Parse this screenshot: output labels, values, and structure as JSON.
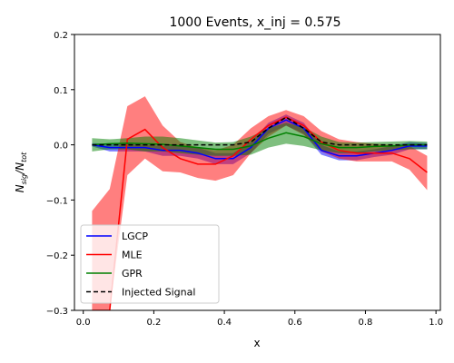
{
  "chart_data": {
    "type": "line",
    "title": "1000 Events, x_inj = 0.575",
    "xlabel": "x",
    "ylabel_main": "N",
    "ylabel_sub1": "sig",
    "ylabel_sep": "/N",
    "ylabel_sub2": "tot",
    "xlim": [
      -0.025,
      1.0125
    ],
    "ylim": [
      -0.3,
      0.2
    ],
    "xticks": [
      0.0,
      0.2,
      0.4,
      0.6,
      0.8,
      1.0
    ],
    "xtick_labels": [
      "0.0",
      "0.2",
      "0.4",
      "0.6",
      "0.8",
      "1.0"
    ],
    "yticks": [
      -0.3,
      -0.2,
      -0.1,
      0.0,
      0.1,
      0.2
    ],
    "ytick_labels": [
      "−0.3",
      "−0.2",
      "−0.1",
      "0.0",
      "0.1",
      "0.2"
    ],
    "grid": false,
    "legend_position": "lower-left",
    "x": [
      0.025,
      0.075,
      0.125,
      0.175,
      0.225,
      0.275,
      0.325,
      0.375,
      0.425,
      0.475,
      0.525,
      0.575,
      0.625,
      0.675,
      0.725,
      0.775,
      0.825,
      0.875,
      0.925,
      0.975
    ],
    "series": [
      {
        "name": "LGCP",
        "color": "#0000ff",
        "style": "solid",
        "values": [
          0.0,
          -0.005,
          -0.005,
          -0.005,
          -0.01,
          -0.01,
          -0.015,
          -0.025,
          -0.025,
          -0.005,
          0.03,
          0.045,
          0.03,
          -0.01,
          -0.02,
          -0.02,
          -0.015,
          -0.01,
          -0.002,
          -0.002
        ],
        "band_upper": [
          0.003,
          0.002,
          0.002,
          0.0,
          -0.002,
          -0.002,
          -0.005,
          -0.015,
          -0.015,
          0.005,
          0.04,
          0.055,
          0.04,
          0.0,
          -0.012,
          -0.012,
          -0.008,
          -0.002,
          0.005,
          0.003
        ],
        "band_lower": [
          -0.003,
          -0.012,
          -0.012,
          -0.012,
          -0.02,
          -0.02,
          -0.025,
          -0.035,
          -0.035,
          -0.015,
          0.02,
          0.035,
          0.02,
          -0.018,
          -0.028,
          -0.028,
          -0.022,
          -0.018,
          -0.008,
          -0.008
        ],
        "band_color": "#0000ff"
      },
      {
        "name": "MLE",
        "color": "#ff0000",
        "style": "solid",
        "values": [
          -0.3,
          -0.3,
          0.01,
          0.028,
          -0.005,
          -0.025,
          -0.035,
          -0.035,
          -0.02,
          0.01,
          0.035,
          0.05,
          0.035,
          0.005,
          -0.01,
          -0.015,
          -0.015,
          -0.015,
          -0.025,
          -0.05
        ],
        "band_upper": [
          -0.12,
          -0.08,
          0.07,
          0.088,
          0.035,
          0.005,
          -0.005,
          -0.01,
          0.0,
          0.03,
          0.052,
          0.063,
          0.052,
          0.025,
          0.01,
          0.005,
          0.002,
          0.0,
          -0.002,
          -0.02
        ],
        "band_lower": [
          -0.3,
          -0.3,
          -0.055,
          -0.025,
          -0.048,
          -0.05,
          -0.06,
          -0.065,
          -0.055,
          -0.015,
          0.015,
          0.035,
          0.018,
          -0.012,
          -0.025,
          -0.03,
          -0.03,
          -0.03,
          -0.045,
          -0.082
        ],
        "band_color": "#ff0000"
      },
      {
        "name": "GPR",
        "color": "#008000",
        "style": "solid",
        "values": [
          0.0,
          0.002,
          0.003,
          0.002,
          0.001,
          -0.002,
          -0.005,
          -0.008,
          -0.008,
          -0.002,
          0.012,
          0.022,
          0.015,
          0.002,
          -0.005,
          -0.005,
          -0.003,
          -0.002,
          0.0,
          0.0
        ],
        "band_upper": [
          0.012,
          0.01,
          0.012,
          0.015,
          0.015,
          0.012,
          0.008,
          0.004,
          0.005,
          0.015,
          0.03,
          0.04,
          0.032,
          0.015,
          0.005,
          0.004,
          0.005,
          0.006,
          0.007,
          0.006
        ],
        "band_lower": [
          -0.012,
          -0.008,
          -0.008,
          -0.012,
          -0.012,
          -0.015,
          -0.018,
          -0.02,
          -0.02,
          -0.018,
          -0.005,
          0.002,
          -0.002,
          -0.01,
          -0.015,
          -0.015,
          -0.012,
          -0.01,
          -0.008,
          -0.008
        ],
        "band_color": "#008000"
      },
      {
        "name": "Injected Signal",
        "color": "#000000",
        "style": "dashed",
        "values": [
          0.0,
          0.0,
          0.0,
          0.0,
          0.0,
          0.0,
          0.0,
          0.0,
          0.0,
          0.005,
          0.03,
          0.05,
          0.03,
          0.005,
          0.0,
          0.0,
          0.0,
          0.0,
          0.0,
          0.0
        ]
      }
    ]
  }
}
